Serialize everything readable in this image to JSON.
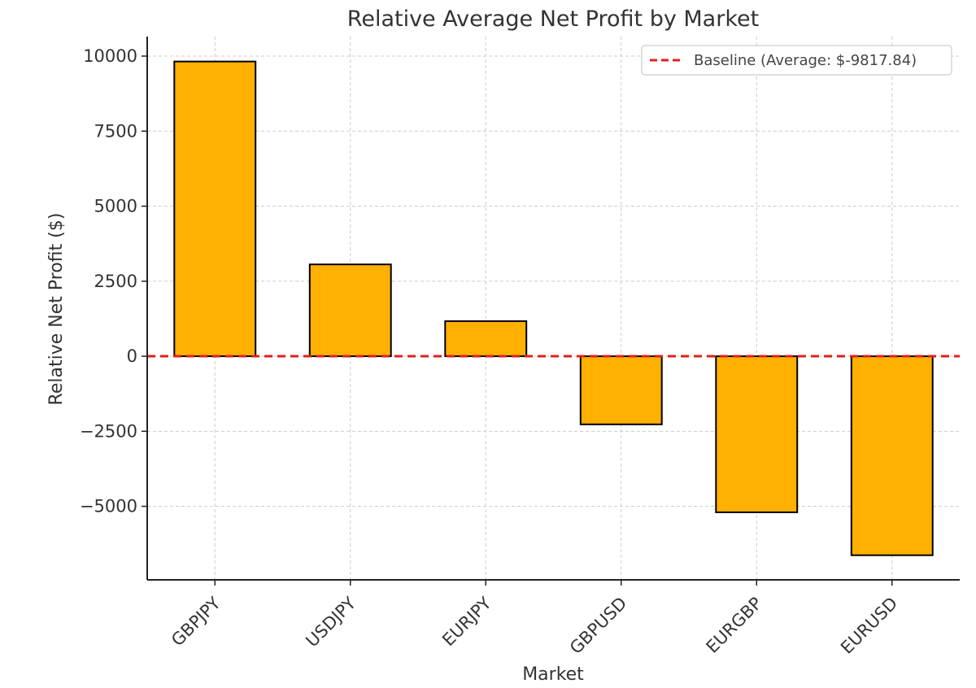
{
  "chart_data": {
    "type": "bar",
    "title": "Relative Average Net Profit by Market",
    "xlabel": "Market",
    "ylabel": "Relative Net Profit ($)",
    "categories": [
      "GBPJPY",
      "USDJPY",
      "EURJPY",
      "GBPUSD",
      "EURGBP",
      "EURUSD"
    ],
    "values": [
      9820,
      3060,
      1170,
      -2270,
      -5200,
      -6630
    ],
    "ylim": [
      -7450,
      10650
    ],
    "yticks": [
      -5000,
      -2500,
      0,
      2500,
      5000,
      7500,
      10000
    ],
    "ytick_labels": [
      "−5000",
      "−2500",
      "0",
      "2500",
      "5000",
      "7500",
      "10000"
    ],
    "grid": true,
    "bar_color": "#FFB000",
    "bar_edge_color": "#000000",
    "baseline": {
      "label": "Baseline (Average: $-9817.84)",
      "value": 0,
      "color": "#E0201B",
      "style": "dashed"
    },
    "legend_position": "top-right"
  }
}
